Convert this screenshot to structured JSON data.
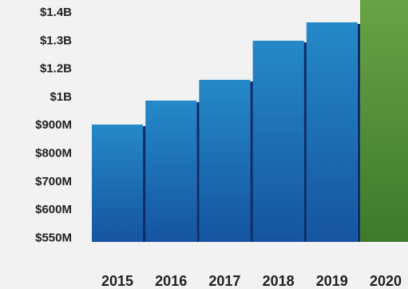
{
  "chart_data": {
    "type": "bar",
    "title": "",
    "xlabel": "",
    "ylabel": "",
    "y_tick_labels": [
      "$1.4B",
      "$1.3B",
      "$1.2B",
      "$1B",
      "$900M",
      "$800M",
      "$700M",
      "$600M",
      "$550M"
    ],
    "categories": [
      "2015",
      "2016",
      "2017",
      "2018",
      "2019",
      "2020"
    ],
    "series": [
      {
        "values": [
          900,
          1000,
          1085,
          1235,
          1340,
          1480
        ],
        "colors": [
          "#1565a8",
          "#1565a8",
          "#1565a8",
          "#1565a8",
          "#1565a8",
          "#4e8c34"
        ]
      }
    ],
    "units": "USD millions",
    "grid": false,
    "legend": "none"
  }
}
